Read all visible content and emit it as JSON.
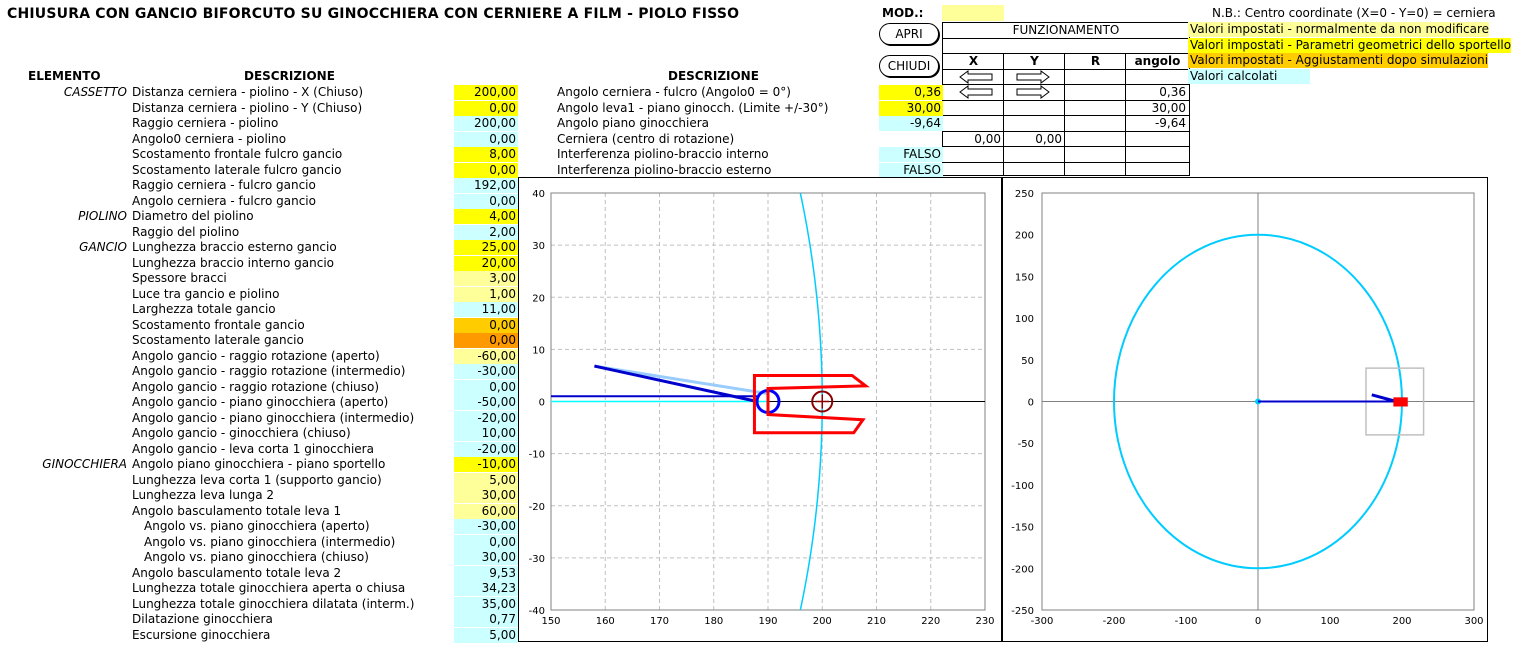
{
  "title": "CHIUSURA CON GANCIO BIFORCUTO SU GINOCCHIERA CON CERNIERE A FILM - PIOLO FISSO",
  "mod_label": "MOD.:",
  "mod_value": "",
  "note": "N.B.: Centro coordinate (X=0 - Y=0) = cerniera",
  "buttons": {
    "apri": "APRI",
    "chiudi": "CHIUDI"
  },
  "funzionamento": {
    "title": "FUNZIONAMENTO",
    "col_x": "X",
    "col_y": "Y",
    "col_r": "R",
    "col_angolo": "angolo",
    "angolo_values": [
      "0,36",
      "30,00",
      "-9,64"
    ],
    "centro_x": "0,00",
    "centro_y": "0,00"
  },
  "legend": [
    {
      "text": "Valori impostati - normalmente da non modificare",
      "color": "#ffff99"
    },
    {
      "text": "Valori impostati - Parametri geometrici dello sportello",
      "color": "#ffff00"
    },
    {
      "text": "Valori impostati - Aggiustamenti dopo simulazioni",
      "color": "#ffcc00"
    },
    {
      "text": "Valori calcolati",
      "color": "#ccffff"
    }
  ],
  "headers": {
    "elemento": "ELEMENTO",
    "descrizione1": "DESCRIZIONE",
    "descrizione2": "DESCRIZIONE"
  },
  "params": [
    {
      "group": "CASSETTO",
      "label": "Distanza cerniera - piolino - X (Chiuso)",
      "value": "200,00",
      "type": "y"
    },
    {
      "group": "",
      "label": "Distanza cerniera - piolino - Y (Chiuso)",
      "value": "0,00",
      "type": "y"
    },
    {
      "group": "",
      "label": "Raggio cerniera - piolino",
      "value": "200,00",
      "type": "c"
    },
    {
      "group": "",
      "label": "Angolo0 cerniera - piolino",
      "value": "0,00",
      "type": "c"
    },
    {
      "group": "",
      "label": "Scostamento frontale fulcro gancio",
      "value": "8,00",
      "type": "y"
    },
    {
      "group": "",
      "label": "Scostamento laterale fulcro gancio",
      "value": "0,00",
      "type": "y"
    },
    {
      "group": "",
      "label": "Raggio cerniera - fulcro gancio",
      "value": "192,00",
      "type": "c"
    },
    {
      "group": "",
      "label": "Angolo cerniera - fulcro gancio",
      "value": "0,00",
      "type": "c"
    },
    {
      "group": "PIOLINO",
      "label": "Diametro del piolino",
      "value": "4,00",
      "type": "y"
    },
    {
      "group": "",
      "label": "Raggio del piolino",
      "value": "2,00",
      "type": "c"
    },
    {
      "group": "GANCIO",
      "label": "Lunghezza braccio esterno gancio",
      "value": "25,00",
      "type": "y"
    },
    {
      "group": "",
      "label": "Lunghezza braccio interno gancio",
      "value": "20,00",
      "type": "y"
    },
    {
      "group": "",
      "label": "Spessore bracci",
      "value": "3,00",
      "type": "ly"
    },
    {
      "group": "",
      "label": "Luce tra gancio e piolino",
      "value": "1,00",
      "type": "ly"
    },
    {
      "group": "",
      "label": "Larghezza totale gancio",
      "value": "11,00",
      "type": "c"
    },
    {
      "group": "",
      "label": "Scostamento frontale gancio",
      "value": "0,00",
      "type": "o"
    },
    {
      "group": "",
      "label": "Scostamento laterale gancio",
      "value": "0,00",
      "type": "oo"
    },
    {
      "group": "",
      "label": "Angolo gancio - raggio rotazione (aperto)",
      "value": "-60,00",
      "type": "ly"
    },
    {
      "group": "",
      "label": "Angolo gancio - raggio rotazione (intermedio)",
      "value": "-30,00",
      "type": "c"
    },
    {
      "group": "",
      "label": "Angolo gancio - raggio rotazione (chiuso)",
      "value": "0,00",
      "type": "c"
    },
    {
      "group": "",
      "label": "Angolo gancio - piano ginocchiera (aperto)",
      "value": "-50,00",
      "type": "c"
    },
    {
      "group": "",
      "label": "Angolo gancio - piano ginocchiera (intermedio)",
      "value": "-20,00",
      "type": "c"
    },
    {
      "group": "",
      "label": "Angolo gancio - ginocchiera (chiuso)",
      "value": "10,00",
      "type": "c"
    },
    {
      "group": "",
      "label": "Angolo gancio - leva corta 1 ginocchiera",
      "value": "-20,00",
      "type": "c"
    },
    {
      "group": "GINOCCHIERA",
      "label": "Angolo piano ginocchiera - piano sportello",
      "value": "-10,00",
      "type": "y"
    },
    {
      "group": "",
      "label": "Lunghezza leva corta 1 (supporto gancio)",
      "value": "5,00",
      "type": "ly"
    },
    {
      "group": "",
      "label": "Lunghezza leva lunga 2",
      "value": "30,00",
      "type": "ly"
    },
    {
      "group": "",
      "label": "Angolo basculamento totale leva 1",
      "value": "60,00",
      "type": "ly"
    },
    {
      "group": "",
      "label": "Angolo vs. piano ginocchiera (aperto)",
      "value": "-30,00",
      "type": "c"
    },
    {
      "group": "",
      "label": "Angolo vs. piano ginocchiera (intermedio)",
      "value": "0,00",
      "type": "c"
    },
    {
      "group": "",
      "label": "Angolo vs. piano ginocchiera (chiuso)",
      "value": "30,00",
      "type": "c"
    },
    {
      "group": "",
      "label": "Angolo basculamento totale leva 2",
      "value": "9,53",
      "type": "c"
    },
    {
      "group": "",
      "label": "Lunghezza totale ginocchiera aperta o chiusa",
      "value": "34,23",
      "type": "c"
    },
    {
      "group": "",
      "label": "Lunghezza totale ginocchiera dilatata (interm.)",
      "value": "35,00",
      "type": "c"
    },
    {
      "group": "",
      "label": "Dilatazione ginocchiera",
      "value": "0,77",
      "type": "c"
    },
    {
      "group": "",
      "label": "Escursione ginocchiera",
      "value": "5,00",
      "type": "c"
    }
  ],
  "params2": [
    {
      "label": "Angolo cerniera - fulcro   (Angolo0 = 0°)",
      "value": "0,36",
      "type": "y"
    },
    {
      "label": "Angolo leva1 - piano ginocch. (Limite +/-30°)",
      "value": "30,00",
      "type": "y"
    },
    {
      "label": "Angolo piano ginocchiera",
      "value": "-9,64",
      "type": "c"
    },
    {
      "label": "Cerniera (centro di rotazione)",
      "value": "",
      "type": "none"
    },
    {
      "label": "Interferenza piolino-braccio interno",
      "value": "FALSO",
      "type": "c"
    },
    {
      "label": "Interferenza piolino-braccio esterno",
      "value": "FALSO",
      "type": "c"
    }
  ],
  "chart_data": [
    {
      "type": "scatter",
      "title": "",
      "xlabel": "",
      "ylabel": "",
      "xlim": [
        150,
        230
      ],
      "ylim": [
        -40,
        40
      ],
      "xticks": [
        "150",
        "160",
        "170",
        "180",
        "190",
        "200",
        "210",
        "220",
        "230"
      ],
      "yticks": [
        "40",
        "30",
        "20",
        "10",
        "0",
        "-10",
        "-20",
        "-30",
        "-40"
      ],
      "grid": true
    },
    {
      "type": "scatter",
      "title": "",
      "xlabel": "",
      "ylabel": "",
      "xlim": [
        -300,
        300
      ],
      "ylim": [
        -250,
        250
      ],
      "xticks": [
        "-300",
        "-200",
        "-100",
        "0",
        "100",
        "200",
        "300"
      ],
      "yticks": [
        "250",
        "200",
        "150",
        "100",
        "50",
        "0",
        "-50",
        "-100",
        "-150",
        "-200",
        "-250"
      ],
      "grid": false
    }
  ]
}
